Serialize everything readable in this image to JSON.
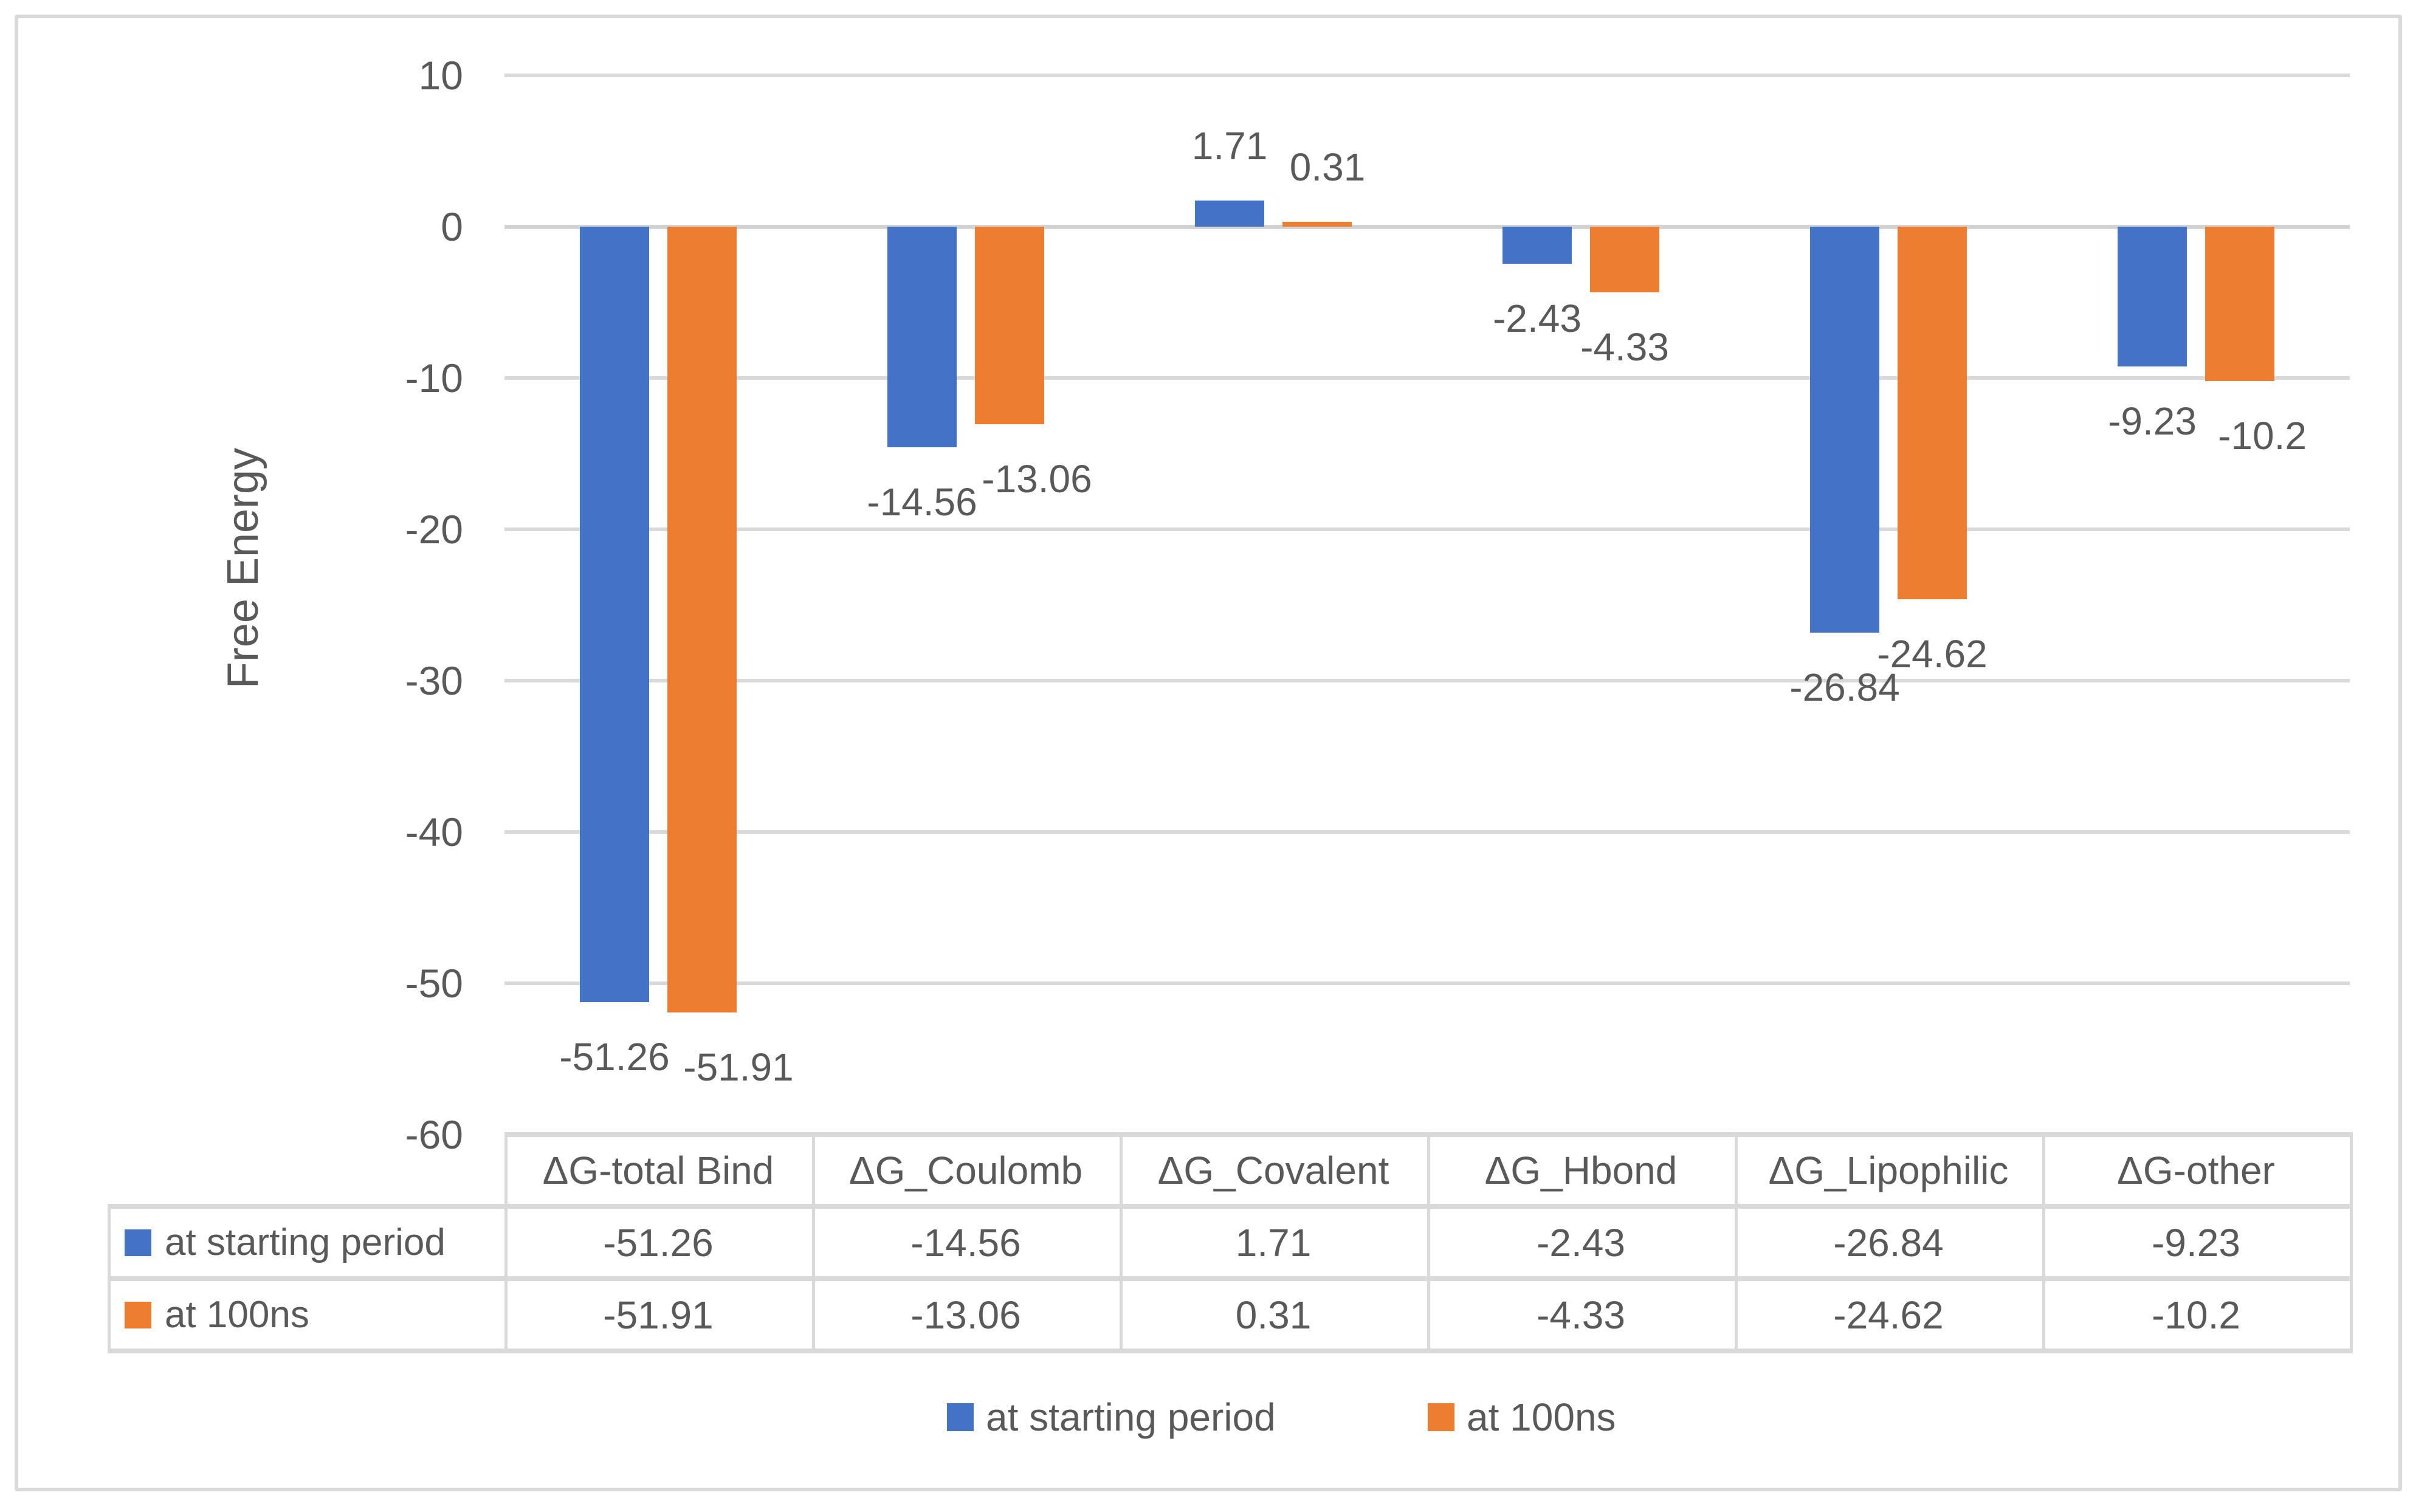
{
  "chart_data": {
    "type": "bar",
    "title": "",
    "xlabel": "",
    "ylabel": "Free Energy",
    "categories": [
      "ΔG-total Bind",
      "ΔG_Coulomb",
      "ΔG_Covalent",
      "ΔG_Hbond",
      "ΔG_Lipophilic",
      "ΔG-other"
    ],
    "series": [
      {
        "name": "at starting period",
        "color": "#4472C4",
        "values": [
          -51.26,
          -14.56,
          1.71,
          -2.43,
          -26.84,
          -9.23
        ]
      },
      {
        "name": "at 100ns",
        "color": "#ED7D31",
        "values": [
          -51.91,
          -13.06,
          0.31,
          -4.33,
          -24.62,
          -10.2
        ]
      }
    ],
    "ylim": [
      -60,
      10
    ],
    "yticks": [
      10,
      0,
      -10,
      -20,
      -30,
      -40,
      -50,
      -60
    ],
    "grid": true,
    "gridline_color": "#D9D9D9",
    "bar_colors": {
      "at starting period": "#4472C4",
      "at 100ns": "#ED7D31"
    },
    "data_labels": "outside-end",
    "legend_position": "bottom",
    "data_table_with_legend_keys": true
  },
  "legend": {
    "items": [
      {
        "label": "at starting period",
        "color": "#4472C4"
      },
      {
        "label": "at 100ns",
        "color": "#ED7D31"
      }
    ]
  },
  "colors": {
    "text": "#595959",
    "gridline": "#D9D9D9",
    "axis_line": "#D3D3D3",
    "table_border": "#D9D9D9",
    "frame_border": "#D9D9D9",
    "background": "#FFFFFF"
  }
}
